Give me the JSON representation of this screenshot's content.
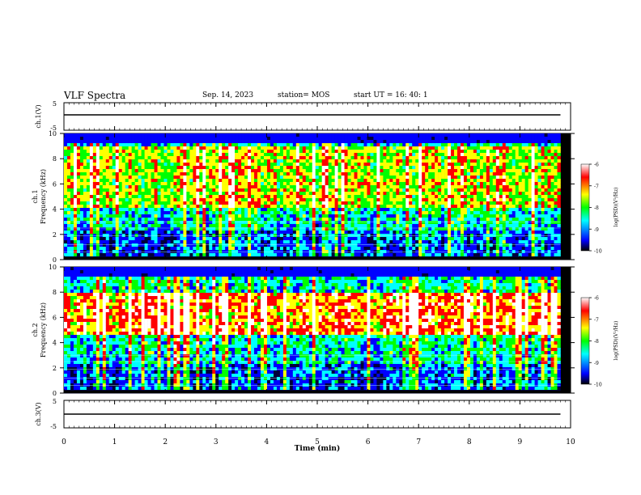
{
  "header": {
    "title": "VLF Spectra",
    "date": "Sep. 14, 2023",
    "station": "station= MOS",
    "start": "start  UT  =   16: 40: 1"
  },
  "chart_data": [
    {
      "type": "line",
      "panel": "ch1-waveform",
      "ylabel": "ch.1(V)",
      "yticks": [
        "5",
        "-5"
      ],
      "ylim": [
        -5,
        5
      ],
      "xlim": [
        0,
        10
      ],
      "baseline_value": 0,
      "series": [
        {
          "name": "ch.1",
          "description_value": 0
        }
      ]
    },
    {
      "type": "heatmap",
      "panel": "ch1-spectrogram",
      "ylabel": "ch.1\nFrequency  (kHz)",
      "ylabel_lines": [
        "ch.1",
        "Frequency  (kHz)"
      ],
      "yticks": [
        "10",
        "8",
        "6",
        "4",
        "2",
        "0"
      ],
      "ylim": [
        0,
        10
      ],
      "xlim": [
        0,
        10
      ],
      "colorbar": {
        "label": "log(PSD)(V²/Hz)",
        "ticks": [
          "-6",
          "-7",
          "-8",
          "-9",
          "-10"
        ],
        "range": [
          -10,
          -6
        ]
      },
      "dominant_band_khz": [
        4,
        9
      ],
      "typical_level": -8
    },
    {
      "type": "heatmap",
      "panel": "ch2-spectrogram",
      "ylabel": "ch.2\nFrequency  (kHz)",
      "ylabel_lines": [
        "ch.2",
        "Frequency  (kHz)"
      ],
      "yticks": [
        "10",
        "8",
        "6",
        "4",
        "2",
        "0"
      ],
      "ylim": [
        0,
        10
      ],
      "xlim": [
        0,
        10
      ],
      "colorbar": {
        "label": "log(PSD)(V²/Hz)",
        "ticks": [
          "-6",
          "-7",
          "-8",
          "-9",
          "-10"
        ],
        "range": [
          -10,
          -6
        ]
      },
      "dominant_band_khz": [
        4.5,
        8
      ],
      "typical_level": -7
    },
    {
      "type": "line",
      "panel": "ch3-waveform",
      "ylabel": "ch.3(V)",
      "yticks": [
        "5",
        "-5"
      ],
      "ylim": [
        -5,
        5
      ],
      "xlim": [
        0,
        10
      ],
      "baseline_value": 0,
      "series": [
        {
          "name": "ch.3",
          "description_value": 0
        }
      ]
    }
  ],
  "xaxis": {
    "label": "Time  (min)",
    "ticks": [
      "0",
      "1",
      "2",
      "3",
      "4",
      "5",
      "6",
      "7",
      "8",
      "9",
      "10"
    ],
    "range": [
      0,
      10
    ],
    "data_end_min": 9.8
  },
  "colors": {
    "c0": "#00003a",
    "c1": "#0000ff",
    "c2": "#00ffff",
    "c3": "#00ff00",
    "c4": "#ffff00",
    "c5": "#ff0000",
    "c6": "#ffffff"
  }
}
